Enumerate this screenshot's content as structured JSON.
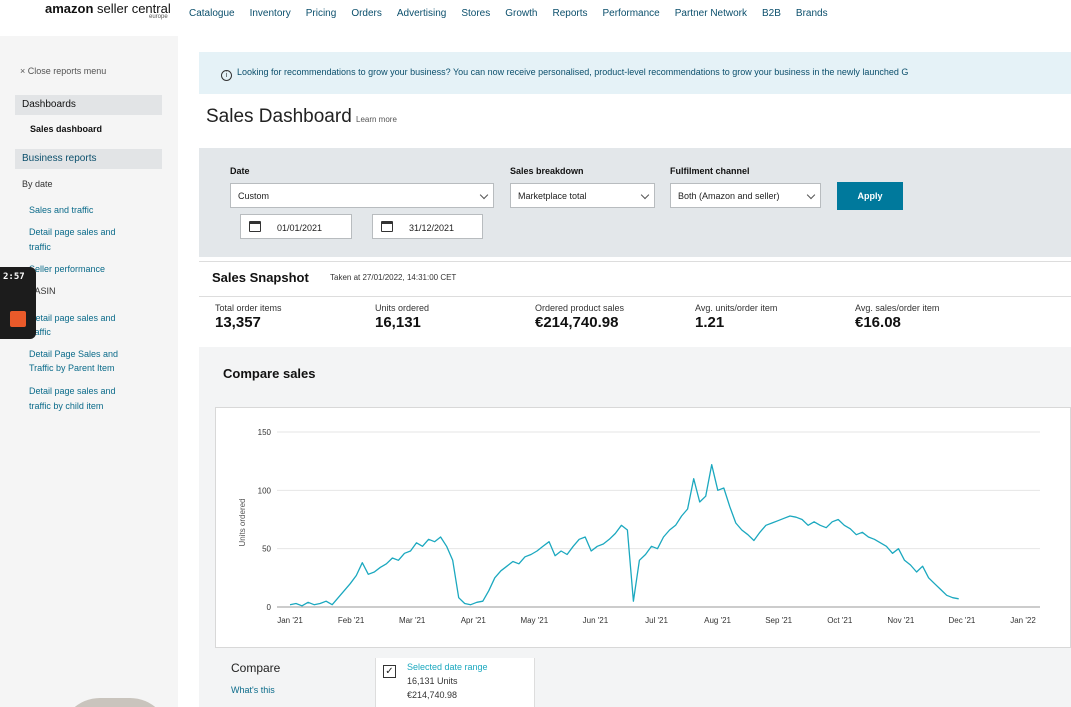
{
  "app": {
    "logo_brand": "amazon",
    "logo_product": " seller central",
    "logo_region": "europe"
  },
  "nav": {
    "items": [
      "Catalogue",
      "Inventory",
      "Pricing",
      "Orders",
      "Advertising",
      "Stores",
      "Growth",
      "Reports",
      "Performance",
      "Partner Network",
      "B2B",
      "Brands"
    ]
  },
  "sidebar": {
    "close_label": "× Close reports menu",
    "dashboards_heading": "Dashboards",
    "sales_dashboard": "Sales dashboard",
    "business_reports_heading": "Business reports",
    "by_date": "By date",
    "sales_and_traffic": "Sales and traffic",
    "detail_page_sales_traffic_1": "Detail page sales and",
    "detail_page_sales_traffic_2": "traffic",
    "seller_performance": "Seller performance",
    "by_asin": "By ASIN",
    "asin_detail_1": "Detail page sales and",
    "asin_detail_2": "traffic",
    "parent_item_1": "Detail Page Sales and",
    "parent_item_2": "Traffic by Parent Item",
    "child_item_1": "Detail page sales and",
    "child_item_2": "traffic by child item"
  },
  "overlay": {
    "timer": "2:57"
  },
  "banner": {
    "text": "Looking for recommendations to grow your business? You can now receive personalised, product-level recommendations to grow your business in the newly launched G"
  },
  "page": {
    "title": "Sales Dashboard",
    "learn_more": "Learn more"
  },
  "filters": {
    "date_label": "Date",
    "date_value": "Custom",
    "start_date": "01/01/2021",
    "end_date": "31/12/2021",
    "breakdown_label": "Sales breakdown",
    "breakdown_value": "Marketplace total",
    "fulfilment_label": "Fulfilment channel",
    "fulfilment_value": "Both (Amazon and seller)",
    "apply_label": "Apply"
  },
  "snapshot": {
    "title": "Sales Snapshot",
    "taken": "Taken at 27/01/2022, 14:31:00 CET",
    "metrics": [
      {
        "label": "Total order items",
        "value": "13,357"
      },
      {
        "label": "Units ordered",
        "value": "16,131"
      },
      {
        "label": "Ordered product sales",
        "value": "€214,740.98"
      },
      {
        "label": "Avg. units/order item",
        "value": "1.21"
      },
      {
        "label": "Avg. sales/order item",
        "value": "€16.08"
      }
    ]
  },
  "compare": {
    "title": "Compare sales",
    "label": "Compare",
    "whats_this": "What's this",
    "legend_title": "Selected date range",
    "legend_units": "16,131 Units",
    "legend_sales": "€214,740.98"
  },
  "colors": {
    "line": "#1ba8bf",
    "accent": "#00799c",
    "link": "#0b6b8a"
  },
  "chart_data": {
    "type": "line",
    "ylabel": "Units ordered",
    "ylim": [
      0,
      150
    ],
    "yticks": [
      0,
      50,
      100,
      150
    ],
    "xticks": [
      "Jan '21",
      "Feb '21",
      "Mar '21",
      "Apr '21",
      "May '21",
      "Jun '21",
      "Jul '21",
      "Aug '21",
      "Sep '21",
      "Oct '21",
      "Nov '21",
      "Dec '21",
      "Jan '22"
    ],
    "grid": true,
    "series": [
      {
        "name": "Selected date range",
        "x_start": "2021-01-01",
        "x_step_days": 3,
        "values": [
          2,
          3,
          1,
          4,
          2,
          3,
          5,
          2,
          8,
          14,
          20,
          27,
          38,
          28,
          30,
          34,
          37,
          42,
          40,
          46,
          48,
          55,
          52,
          58,
          56,
          60,
          52,
          40,
          8,
          3,
          2,
          4,
          5,
          14,
          25,
          31,
          35,
          39,
          37,
          43,
          45,
          48,
          52,
          56,
          44,
          48,
          45,
          52,
          58,
          60,
          48,
          52,
          54,
          58,
          63,
          70,
          66,
          5,
          40,
          45,
          52,
          50,
          60,
          66,
          70,
          78,
          84,
          110,
          90,
          95,
          122,
          100,
          102,
          86,
          72,
          66,
          62,
          57,
          64,
          70,
          72,
          74,
          76,
          78,
          77,
          75,
          70,
          73,
          70,
          68,
          73,
          75,
          70,
          67,
          62,
          64,
          60,
          58,
          55,
          52,
          46,
          50,
          40,
          36,
          30,
          35,
          25,
          20,
          15,
          10,
          8,
          7
        ]
      }
    ]
  }
}
